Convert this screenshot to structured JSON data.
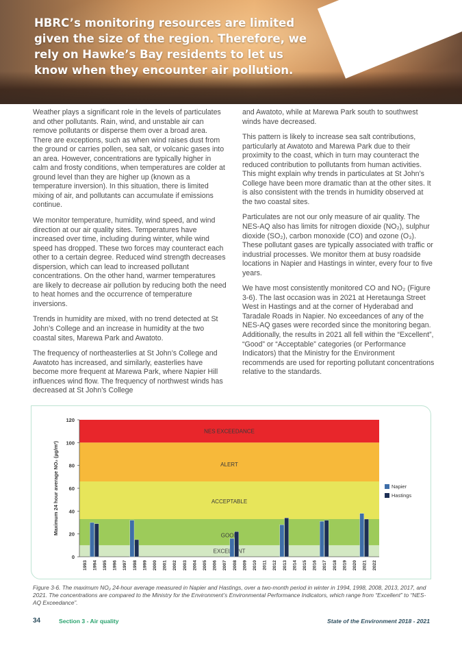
{
  "headline": "HBRC’s monitoring resources are limited given the size of the region. Therefore, we rely on Hawke’s Bay residents to let us know when they encounter air pollution.",
  "left_column": [
    "Weather plays a significant role in the levels of particulates and other pollutants. Rain, wind, and unstable air can remove pollutants or disperse them over a broad area. There are exceptions, such as when wind raises dust from the ground or carries pollen, sea salt, or volcanic gases into an area. However, concentrations are typically higher in calm and frosty conditions, when temperatures are colder at ground level than they are higher up (known as a temperature inversion). In this situation, there is limited mixing of air, and pollutants can accumulate if emissions continue.",
    "We monitor temperature, humidity, wind speed, and wind direction at our air quality sites. Temperatures have increased over time, including during winter, while wind speed has dropped. These two forces may counteract each other to a certain degree. Reduced wind strength decreases dispersion, which can lead to increased pollutant concentrations. On the other hand, warmer temperatures are likely to decrease air pollution by reducing both the need to heat homes and the occurrence of temperature inversions.",
    "Trends in humidity are mixed, with no trend detected at St John’s College and an increase in humidity at the two coastal sites, Marewa Park and Awatoto.",
    "The frequency of northeasterlies at St John’s College and Awatoto has increased, and similarly, easterlies have become more frequent at Marewa Park, where Napier Hill influences wind flow. The frequency of northwest winds has decreased at St John’s College"
  ],
  "right_column": [
    "and Awatoto, while at Marewa Park south to southwest winds have decreased.",
    "This pattern is likely to increase sea salt contributions, particularly at Awatoto and Marewa Park due to their proximity to the coast, which in turn may counteract the reduced contribution to pollutants from human activities. This might explain why trends in particulates at St John’s College have been more dramatic than at the other sites. It is also consistent with the trends in humidity observed at the two coastal sites.",
    "Particulates are not our only measure of air quality. The NES-AQ also has limits for nitrogen dioxide (NO₂), sulphur dioxide (SO₂), carbon monoxide (CO) and ozone (O₃). These pollutant gases are typically associated with traffic or industrial processes. We monitor them at busy roadside locations in Napier and Hastings in winter, every four to five years.",
    "We have most consistently monitored CO and NO₂ (Figure 3-6). The last occasion was in 2021 at Heretaunga Street West in Hastings and at the corner of Hyderabad and Taradale Roads in Napier. No exceedances of any of the NES-AQ gases were recorded since the monitoring began. Additionally, the results in 2021 all fell within the “Excellent”, “Good” or “Acceptable” categories (or Performance Indicators) that the Ministry for the Environment recommends are used for reporting pollutant concentrations relative to the standards."
  ],
  "chart_data": {
    "type": "bar",
    "ylabel": "Maximum 24 hour average NO₂ (µg/m³)",
    "ylim": [
      0,
      120
    ],
    "yticks": [
      0,
      20,
      40,
      60,
      80,
      100,
      120
    ],
    "categories": [
      "1993",
      "1994",
      "1995",
      "1996",
      "1997",
      "1998",
      "1999",
      "2000",
      "2001",
      "2002",
      "2003",
      "2004",
      "2005",
      "2006",
      "2007",
      "2008",
      "2009",
      "2010",
      "2011",
      "2012",
      "2013",
      "2014",
      "2015",
      "2016",
      "2017",
      "2018",
      "2019",
      "2020",
      "2021",
      "2022"
    ],
    "series": [
      {
        "name": "Napier",
        "color": "#3e6ea8",
        "values": [
          null,
          30,
          null,
          null,
          null,
          32,
          null,
          null,
          null,
          null,
          null,
          null,
          null,
          null,
          null,
          16,
          null,
          null,
          null,
          null,
          28,
          null,
          null,
          null,
          31,
          null,
          null,
          null,
          38,
          null
        ]
      },
      {
        "name": "Hastings",
        "color": "#1d2f55",
        "values": [
          null,
          29,
          null,
          null,
          null,
          15,
          null,
          null,
          null,
          null,
          null,
          null,
          null,
          null,
          null,
          22,
          null,
          null,
          null,
          null,
          34,
          null,
          null,
          null,
          32,
          null,
          null,
          null,
          33,
          null
        ]
      }
    ],
    "bands": [
      {
        "label": "NES EXCEEDANCE",
        "from": 100,
        "to": 120,
        "color": "#e8262b",
        "label_y": 110
      },
      {
        "label": "ALERT",
        "from": 66,
        "to": 100,
        "color": "#f7b93a",
        "label_y": 81
      },
      {
        "label": "ACCEPTABLE",
        "from": 33,
        "to": 66,
        "color": "#e7e55a",
        "label_y": 48.5
      },
      {
        "label": "GOOD",
        "from": 10,
        "to": 33,
        "color": "#9dcb5a",
        "label_y": 19
      },
      {
        "label": "EXCELLENT",
        "from": 0,
        "to": 10,
        "color": "#d3e8c3",
        "label_y": 5
      }
    ],
    "legend_position": "right"
  },
  "caption": "Figure 3-6. The maximum NO₂ 24-hour average measured in Napier and Hastings, over a two-month period in winter in 1994, 1998, 2008, 2013, 2017, and 2021. The concentrations are compared to the Ministry for the Environment’s Environmental Performance Indicators, which range from “Excellent” to “NES-AQ Exceedance”.",
  "footer": {
    "page_number": "34",
    "section": "Section 3 - Air quality",
    "publication": "State of the Environment 2018 - 2021"
  }
}
